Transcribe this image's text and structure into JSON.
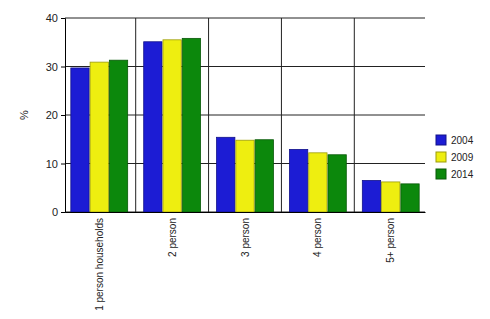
{
  "chart_data": {
    "type": "bar",
    "y_label": "%",
    "categories": [
      "1 person households",
      "2 person",
      "3 person",
      "4 person",
      "5+ person"
    ],
    "series": [
      {
        "name": "2004",
        "color": "#1c1cd4",
        "values": [
          29.7,
          35.1,
          15.4,
          12.9,
          6.5
        ]
      },
      {
        "name": "2009",
        "color": "#eeee10",
        "values": [
          30.9,
          35.5,
          14.8,
          12.2,
          6.2
        ]
      },
      {
        "name": "2014",
        "color": "#0c880c",
        "values": [
          31.3,
          35.8,
          14.9,
          11.8,
          5.8
        ]
      }
    ],
    "ylim": [
      0,
      40
    ],
    "yticks": [
      0,
      10,
      20,
      30,
      40
    ],
    "grid": true,
    "legend": "right"
  }
}
